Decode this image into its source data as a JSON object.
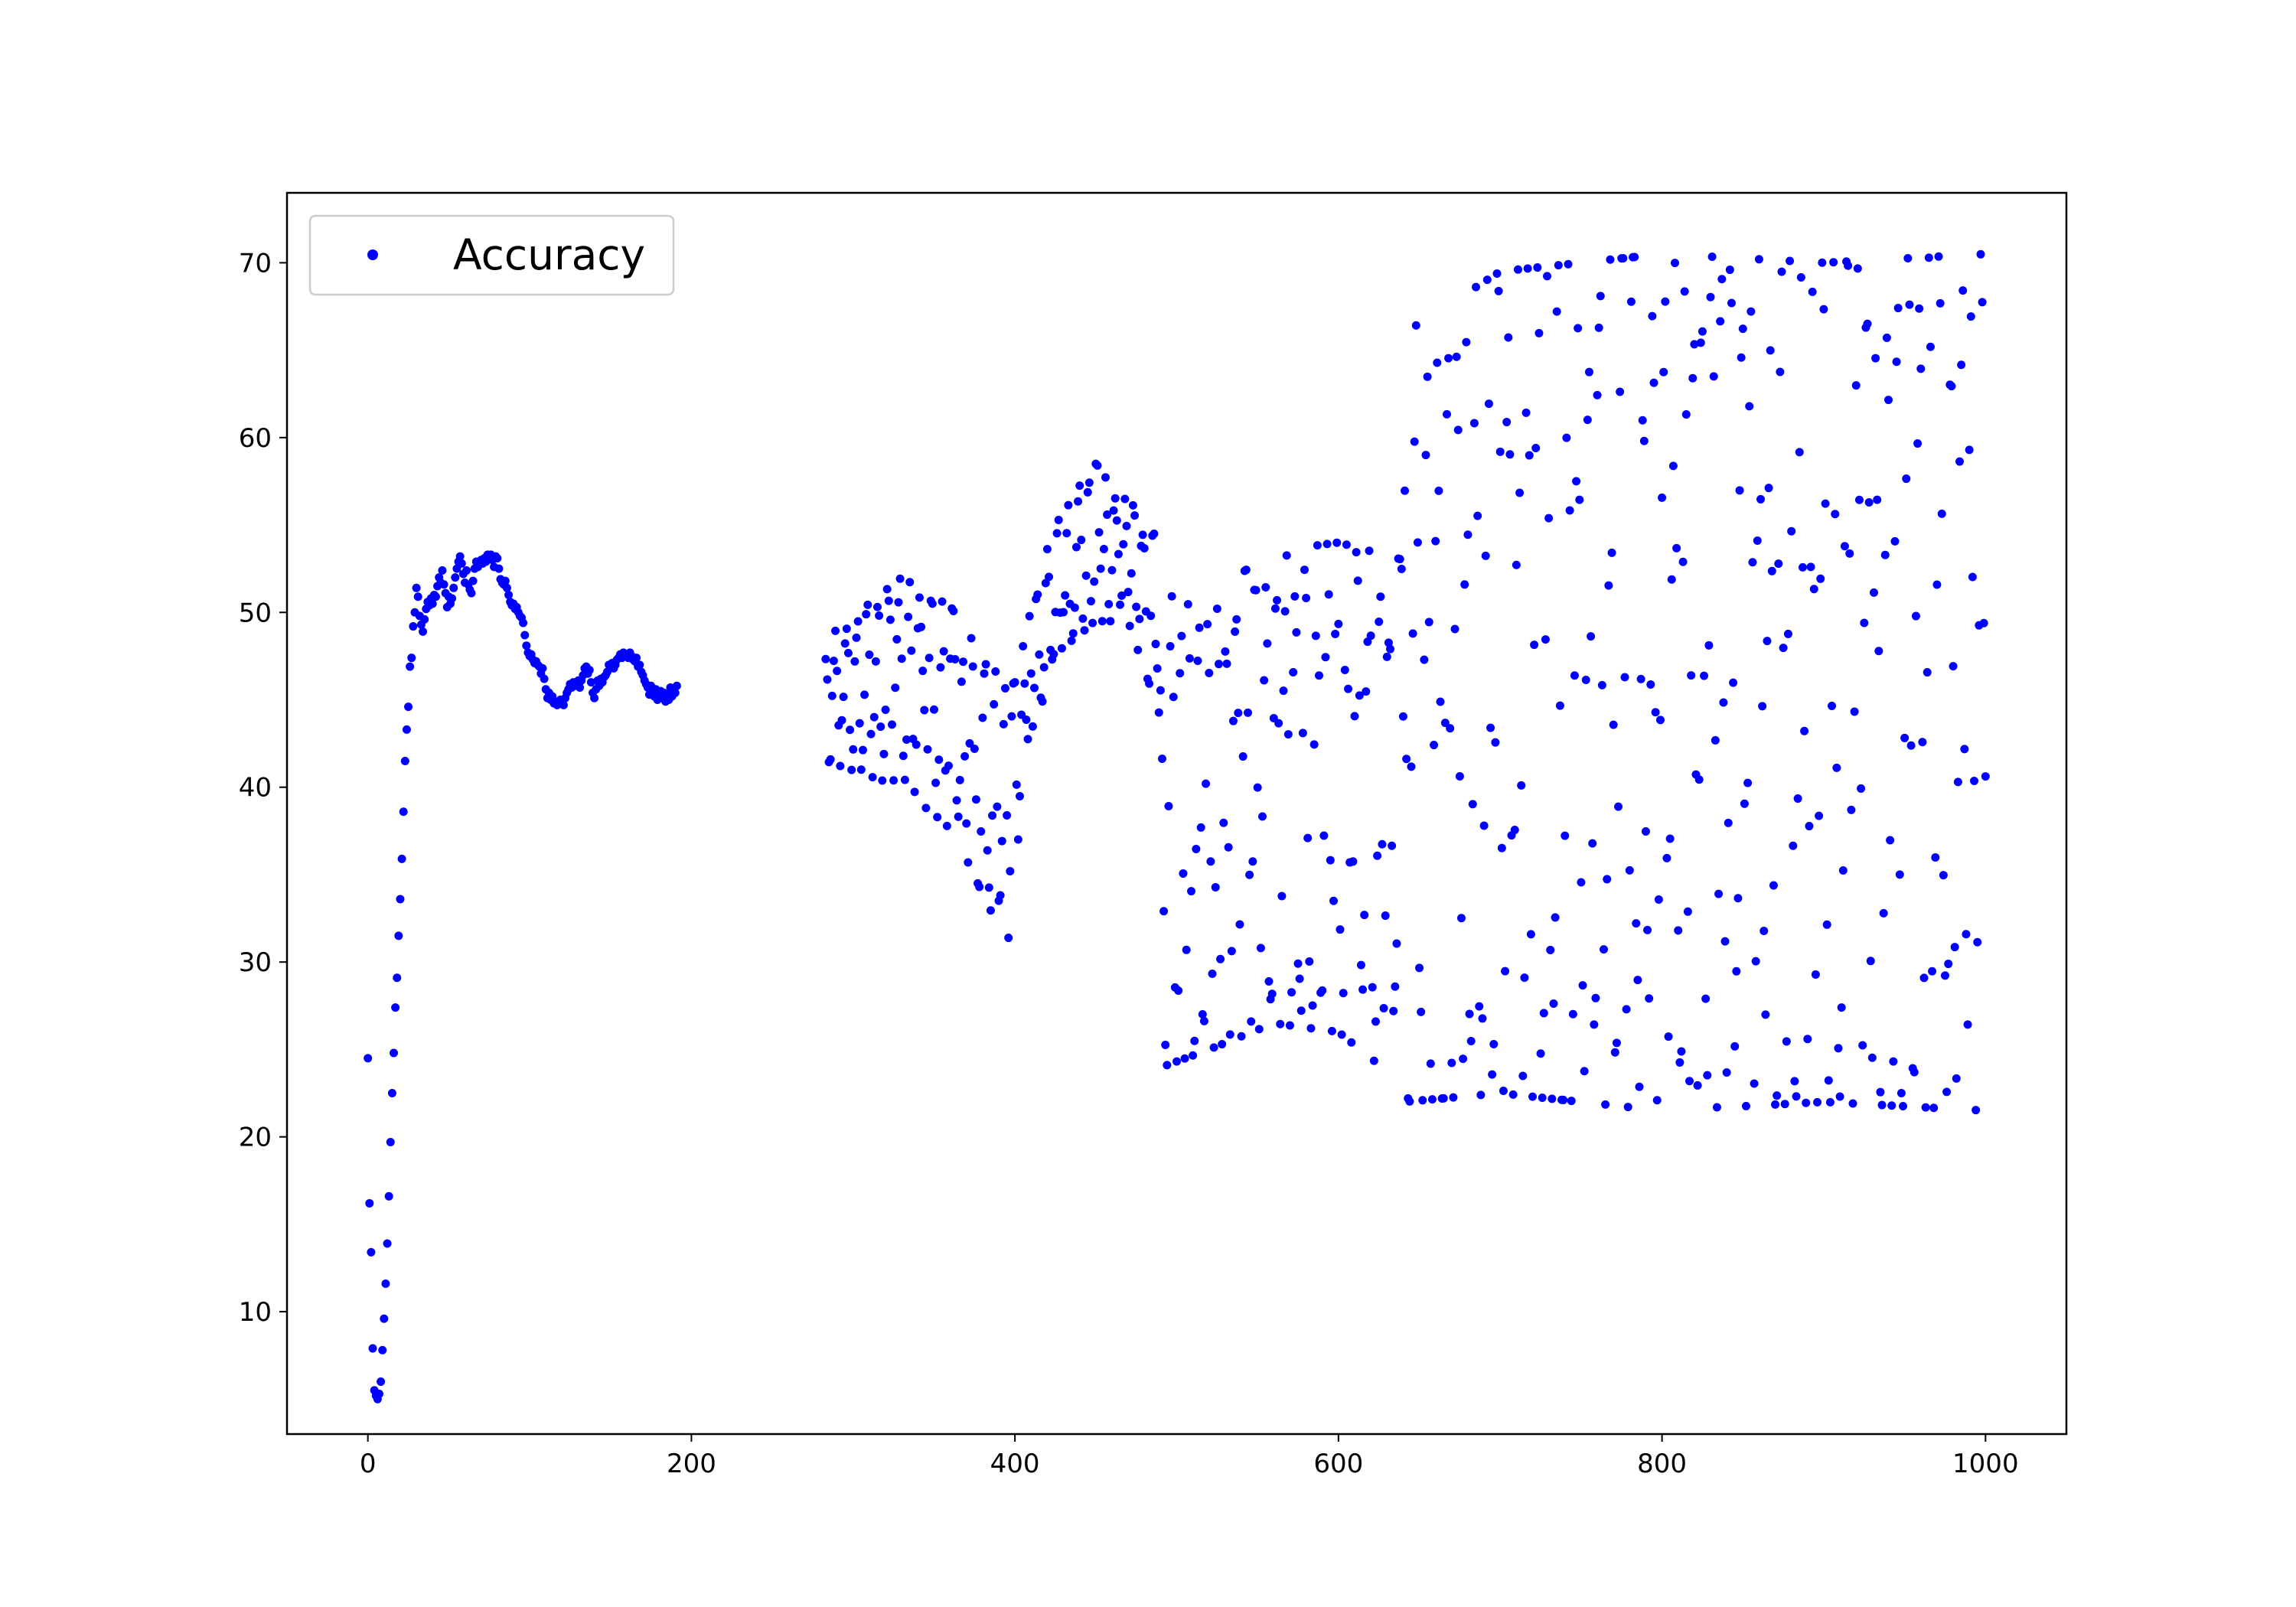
{
  "chart_data": {
    "type": "scatter",
    "title": "",
    "xlabel": "",
    "ylabel": "",
    "xlim": [
      -50,
      1050
    ],
    "ylim": [
      3,
      74
    ],
    "x_ticks": [
      0,
      200,
      400,
      600,
      800,
      1000
    ],
    "y_ticks": [
      10,
      20,
      30,
      40,
      50,
      60,
      70
    ],
    "grid": false,
    "legend_position": "upper-left",
    "series": [
      {
        "name": "Accuracy",
        "color": "#0000ff",
        "marker": "dot",
        "segments": [
          {
            "kind": "explicit",
            "x_start": 0,
            "points_y": [
              24.5,
              16.2,
              13.4,
              7.9,
              5.5,
              5.2,
              5.0,
              5.3,
              6.0,
              7.8,
              9.6,
              11.6,
              13.9,
              16.6,
              19.7,
              22.5,
              24.8,
              27.4,
              29.1,
              31.5,
              33.6,
              35.9,
              38.6,
              41.5,
              43.3,
              44.6,
              46.9,
              47.4,
              49.2,
              50.0,
              51.4,
              50.9,
              49.8,
              49.3,
              48.9,
              49.6,
              50.2,
              50.6,
              50.4,
              50.8,
              50.5,
              51.0,
              50.9,
              51.5,
              52.0,
              51.7,
              52.4,
              51.6,
              51.1,
              50.3,
              50.9,
              50.5,
              50.8,
              51.4,
              52.0,
              52.5,
              52.9,
              53.2,
              52.8,
              52.2,
              51.7,
              52.4,
              51.6,
              51.3,
              51.1,
              51.8,
              52.5,
              52.9,
              52.6,
              52.9,
              53.0,
              52.8,
              53.1,
              52.9,
              53.3,
              53.1,
              53.3,
              53.0,
              52.6,
              53.2,
              53.1,
              52.5,
              51.9,
              51.7,
              51.6,
              51.8,
              51.4,
              51.0,
              50.6,
              50.4,
              50.5,
              50.2,
              50.3,
              50.0,
              49.8,
              49.7,
              49.4,
              48.7,
              48.1,
              47.7,
              47.5,
              47.6,
              47.3,
              47.1,
              47.2,
              47.0,
              46.9,
              46.5,
              46.8,
              46.2,
              45.6,
              45.1,
              45.4,
              45.0,
              45.2,
              44.8,
              44.9,
              44.7,
              44.8,
              45.0,
              44.9,
              44.7,
              45.1,
              45.4,
              45.6,
              45.9,
              45.7,
              46.0,
              45.8,
              45.9,
              46.1,
              45.7,
              46.1,
              46.4,
              46.8,
              46.9,
              46.5,
              46.7,
              46.0,
              45.4,
              45.1,
              45.6,
              46.1,
              45.8,
              46.2,
              46.0,
              46.3,
              46.4,
              46.6,
              47.0,
              46.9,
              47.1,
              46.8,
              47.0,
              47.3,
              47.4,
              47.6,
              47.4,
              47.7,
              47.5,
              47.6,
              47.4,
              47.7,
              47.5,
              47.3,
              47.2,
              47.4,
              46.9,
              47.0,
              46.6,
              46.4,
              46.1,
              45.9,
              45.7,
              45.3,
              45.8,
              45.5,
              45.2,
              45.6,
              45.0,
              45.2,
              45.5,
              45.1,
              45.4,
              44.9,
              45.3,
              45.0,
              45.7,
              45.2,
              45.6,
              45.4,
              45.8
            ]
          },
          {
            "kind": "band",
            "x_start": 283,
            "x_end": 408,
            "center": [
              [
                283,
                45
              ],
              [
                330,
                46
              ],
              [
                360,
                44
              ],
              [
                385,
                40
              ],
              [
                395,
                38
              ],
              [
                408,
                46
              ]
            ],
            "amplitude": [
              [
                283,
                3.5
              ],
              [
                330,
                6.0
              ],
              [
                370,
                6.5
              ],
              [
                395,
                7.5
              ],
              [
                408,
                4.0
              ]
            ],
            "seed": 11
          },
          {
            "kind": "band",
            "x_start": 409,
            "x_end": 490,
            "center": [
              [
                409,
                47
              ],
              [
                430,
                52
              ],
              [
                450,
                54
              ],
              [
                470,
                53
              ],
              [
                490,
                49
              ]
            ],
            "amplitude": [
              [
                409,
                4.0
              ],
              [
                430,
                4.0
              ],
              [
                450,
                4.5
              ],
              [
                470,
                3.5
              ],
              [
                490,
                5.0
              ]
            ],
            "seed": 23
          },
          {
            "kind": "band",
            "x_start": 491,
            "x_end": 640,
            "center": [
              [
                491,
                38
              ],
              [
                520,
                38
              ],
              [
                560,
                40
              ],
              [
                600,
                40
              ],
              [
                640,
                38
              ]
            ],
            "amplitude": [
              [
                491,
                14.0
              ],
              [
                520,
                13.0
              ],
              [
                560,
                13.5
              ],
              [
                600,
                14.0
              ],
              [
                640,
                15.0
              ]
            ],
            "seed": 37
          },
          {
            "kind": "band",
            "x_start": 641,
            "x_end": 1000,
            "center": [
              [
                641,
                44
              ],
              [
                700,
                46
              ],
              [
                800,
                46
              ],
              [
                900,
                46
              ],
              [
                1000,
                46
              ]
            ],
            "amplitude": [
              [
                641,
                22.0
              ],
              [
                700,
                23.5
              ],
              [
                800,
                24.5
              ],
              [
                900,
                24.0
              ],
              [
                1000,
                24.5
              ]
            ],
            "seed": 53
          }
        ]
      }
    ]
  }
}
